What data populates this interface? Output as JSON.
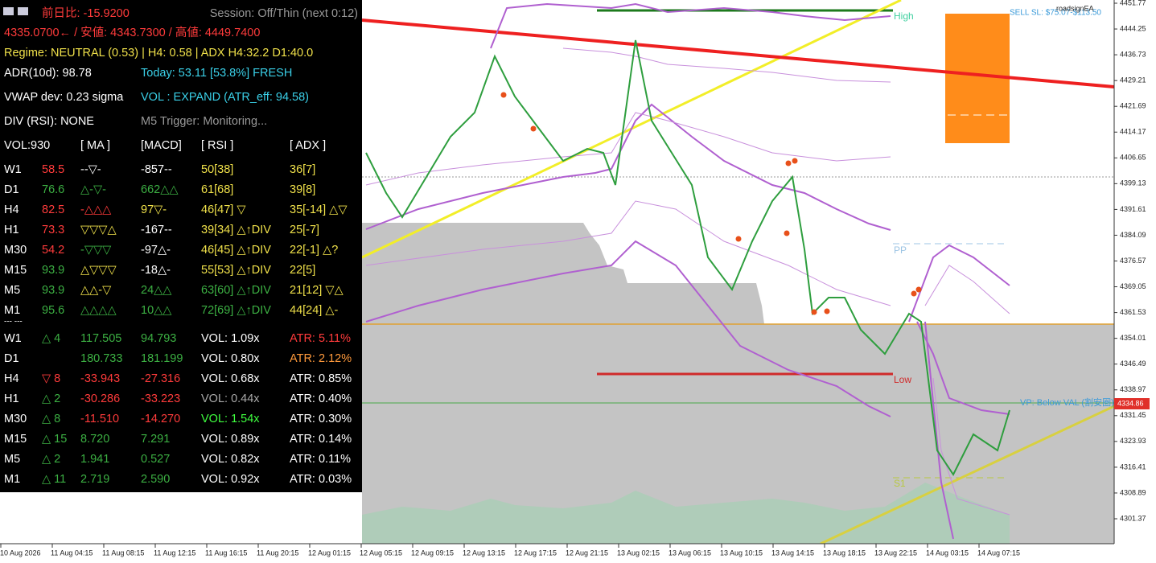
{
  "info_panel": {
    "change": "前日比: -15.9200",
    "session": "Session: Off/Thin (next 0:12)",
    "price_line": "4335.0700← / 安値: 4343.7300 / 高値: 4449.7400",
    "regime": "Regime: NEUTRAL (0.53) | H4: 0.58 | ADX H4:32.2 D1:40.0",
    "adr": "ADR(10d): 98.78",
    "today": "Today: 53.11 [53.8%] FRESH",
    "vwap": "VWAP dev: 0.23 sigma",
    "vol_state": "VOL : EXPAND (ATR_eff: 94.58)",
    "div": "DIV (RSI): NONE",
    "trigger": "M5 Trigger: Monitoring...",
    "headers": [
      "VOL:930",
      "[ MA ]",
      "[MACD]",
      "[ RSI ]",
      "[ ADX ]"
    ],
    "rows": [
      [
        "W1",
        "58.5",
        "--▽-",
        "-857--",
        "50[38]",
        "36[7]"
      ],
      [
        "D1",
        "76.6",
        "△-▽-",
        "662△△",
        "61[68]",
        "39[8]"
      ],
      [
        "H4",
        "82.5",
        "-△△△",
        "97▽-",
        "46[47] ▽",
        "35[-14] △▽"
      ],
      [
        "H1",
        "73.3",
        "▽▽▽△",
        "-167--",
        "39[34] △↑DIV",
        "25[-7]"
      ],
      [
        "M30",
        "54.2",
        "-▽▽▽",
        "-97△-",
        "46[45] △↑DIV",
        "22[-1] △?"
      ],
      [
        "M15",
        "93.9",
        "△▽▽▽",
        "-18△-",
        "55[53] △↑DIV",
        "22[5]"
      ],
      [
        "M5",
        "93.9",
        "△△-▽",
        "24△△",
        "63[60] △↑DIV",
        "21[12] ▽△"
      ],
      [
        "M1",
        "95.6",
        "△△△△",
        "10△△",
        "72[69] △↑DIV",
        "44[24] △-"
      ]
    ],
    "separator": "--- ---",
    "stats_rows": [
      [
        "W1",
        "△ 4",
        "117.505",
        "94.793",
        "VOL: 1.09x",
        "ATR: 5.11%"
      ],
      [
        "D1",
        "180.733",
        "181.199",
        "VOL: 0.80x",
        "ATR: 2.12%"
      ],
      [
        "H4",
        "▽ 8",
        "-33.943",
        "-27.316",
        "VOL: 0.68x",
        "ATR: 0.85%"
      ],
      [
        "H1",
        "△ 2",
        "-30.286",
        "-33.223",
        "VOL: 0.44x",
        "ATR: 0.40%"
      ],
      [
        "M30",
        "△ 8",
        "-11.510",
        "-14.270",
        "VOL: 1.54x",
        "ATR: 0.30%"
      ],
      [
        "M15",
        "△ 15",
        "8.720",
        "7.291",
        "VOL: 0.89x",
        "ATR: 0.14%"
      ],
      [
        "M5",
        "△ 2",
        "1.941",
        "0.527",
        "VOL: 0.82x",
        "ATR: 0.11%"
      ],
      [
        "M1",
        "△ 11",
        "2.719",
        "2.590",
        "VOL: 0.92x",
        "ATR: 0.03%"
      ]
    ]
  },
  "chart_labels": {
    "high": "High",
    "low": "Low",
    "pp": "PP",
    "s1": "S1",
    "sell_sl": "SELL SL: $75.07-$113.50",
    "ea": "roadsignEA",
    "vp": "VP: Below VAL (割安圏)"
  },
  "price_axis": {
    "ticks": [
      "4451.77",
      "4444.25",
      "4436.73",
      "4429.21",
      "4421.69",
      "4414.17",
      "4406.65",
      "4399.13",
      "4391.61",
      "4384.09",
      "4376.57",
      "4369.05",
      "4361.53",
      "4354.01",
      "4346.49",
      "4338.97",
      "4331.45",
      "4323.93",
      "4316.41",
      "4308.89",
      "4301.37"
    ],
    "current": "4334.86"
  },
  "time_axis": [
    "10 Aug 2026",
    "11 Aug 04:15",
    "11 Aug 08:15",
    "11 Aug 12:15",
    "11 Aug 16:15",
    "11 Aug 20:15",
    "12 Aug 01:15",
    "12 Aug 05:15",
    "12 Aug 09:15",
    "12 Aug 13:15",
    "12 Aug 17:15",
    "12 Aug 21:15",
    "13 Aug 02:15",
    "13 Aug 06:15",
    "13 Aug 10:15",
    "13 Aug 14:15",
    "13 Aug 18:15",
    "13 Aug 22:15",
    "14 Aug 03:15",
    "14 Aug 07:15"
  ]
}
